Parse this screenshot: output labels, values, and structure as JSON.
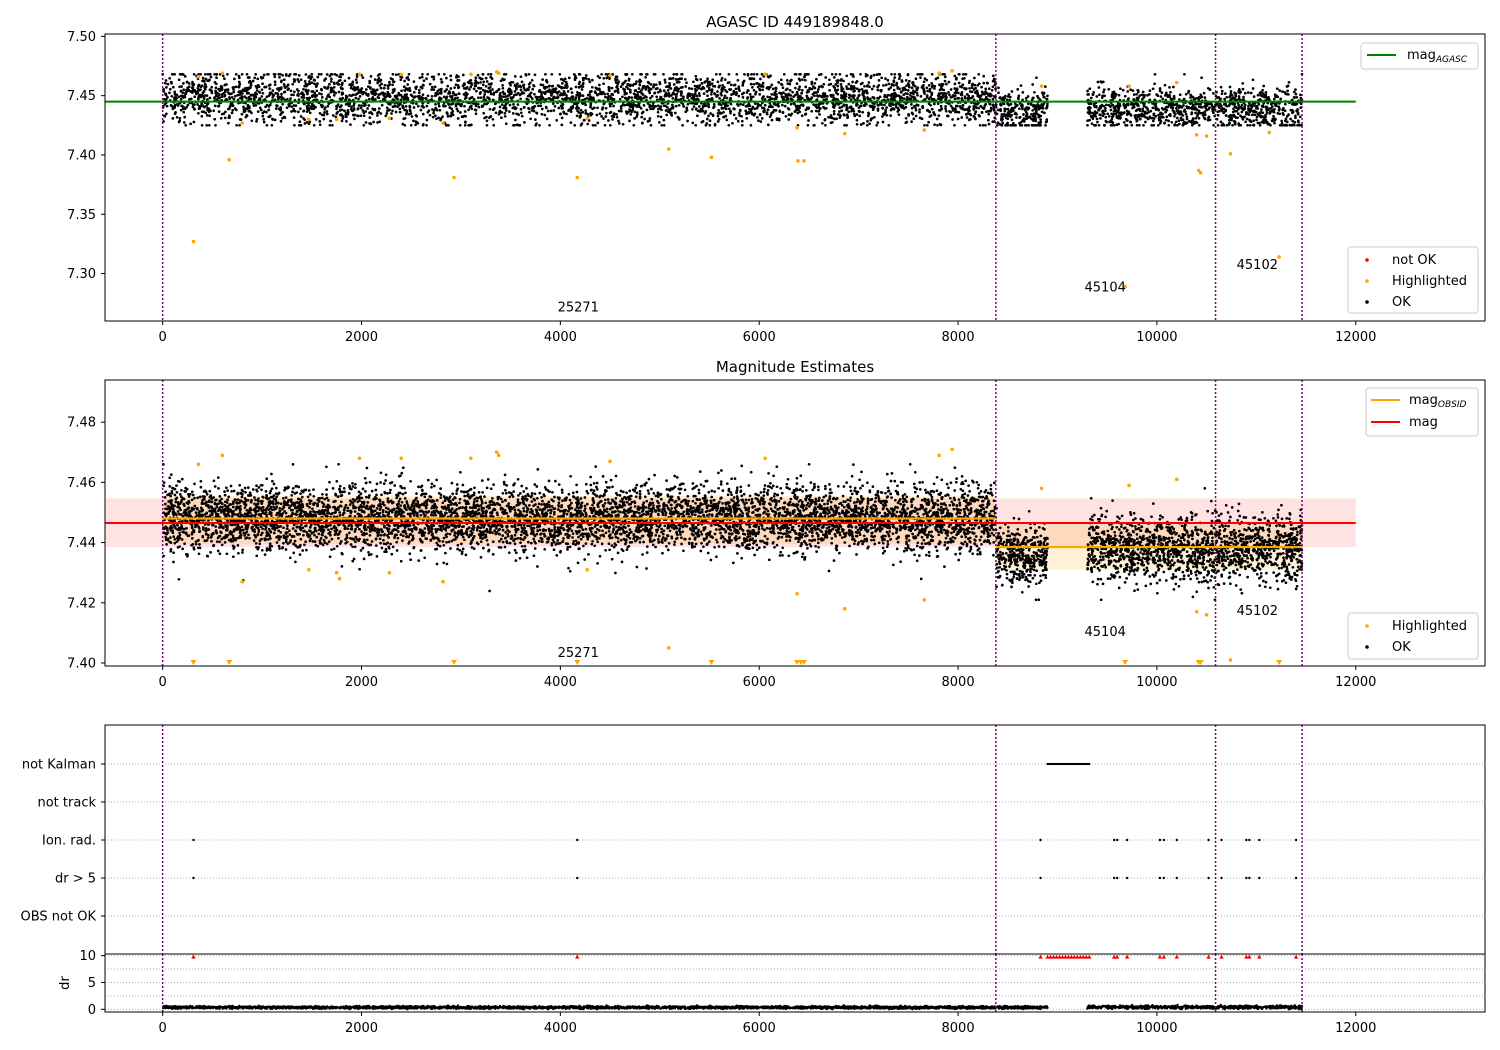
{
  "figure": {
    "background": "#ffffff"
  },
  "colors": {
    "ok": "#000000",
    "highlighted": "#ffa500",
    "not_ok": "#ff0000",
    "mag_agasc": "#008000",
    "mag_obsid": "#ffa500",
    "mag": "#ff0000",
    "obs_boundary": "#800080",
    "grid": "#b0b0b0"
  },
  "chart_data": [
    {
      "type": "scatter",
      "title": "AGASC ID 449189848.0",
      "xlim": [
        -580,
        13300
      ],
      "ylim": [
        7.26,
        7.502
      ],
      "xticks": [
        0,
        2000,
        4000,
        6000,
        8000,
        10000,
        12000
      ],
      "xtick_labels": [
        "0",
        "2000",
        "4000",
        "6000",
        "8000",
        "10000",
        "12000"
      ],
      "yticks": [
        7.3,
        7.35,
        7.4,
        7.45,
        7.5
      ],
      "ytick_labels": [
        "7.30",
        "7.35",
        "7.40",
        "7.45",
        "7.50"
      ],
      "obsid_boundaries": [
        0,
        8380,
        10590,
        11460
      ],
      "obsid_labels": [
        {
          "text": "25271",
          "x": 4180,
          "y": 7.268
        },
        {
          "text": "45104",
          "x": 9480,
          "y": 7.285
        },
        {
          "text": "45102",
          "x": 11010,
          "y": 7.304
        }
      ],
      "mag_agasc": {
        "name": "mag_{AGASC}",
        "label_main": "mag",
        "label_sub": "AGASC",
        "x": [
          -580,
          12000
        ],
        "y": 7.445
      },
      "ok_segments": [
        {
          "x_start": 0,
          "x_end": 8380,
          "mean": 7.448,
          "spread": 0.011
        },
        {
          "x_start": 8380,
          "x_end": 8900,
          "mean": 7.437,
          "spread": 0.009
        },
        {
          "x_start": 9300,
          "x_end": 11460,
          "mean": 7.439,
          "spread": 0.009
        }
      ],
      "highlighted": [
        {
          "x": 310,
          "y": 7.327
        },
        {
          "x": 670,
          "y": 7.396
        },
        {
          "x": 2930,
          "y": 7.381
        },
        {
          "x": 4170,
          "y": 7.381
        },
        {
          "x": 5090,
          "y": 7.405
        },
        {
          "x": 5520,
          "y": 7.398
        },
        {
          "x": 6380,
          "y": 7.423
        },
        {
          "x": 6390,
          "y": 7.395
        },
        {
          "x": 6450,
          "y": 7.395
        },
        {
          "x": 6860,
          "y": 7.418
        },
        {
          "x": 7660,
          "y": 7.421
        },
        {
          "x": 800,
          "y": 7.427
        },
        {
          "x": 1470,
          "y": 7.43
        },
        {
          "x": 1750,
          "y": 7.43
        },
        {
          "x": 2280,
          "y": 7.431
        },
        {
          "x": 2820,
          "y": 7.427
        },
        {
          "x": 4270,
          "y": 7.431
        },
        {
          "x": 360,
          "y": 7.466
        },
        {
          "x": 600,
          "y": 7.469
        },
        {
          "x": 1980,
          "y": 7.468
        },
        {
          "x": 2400,
          "y": 7.468
        },
        {
          "x": 3100,
          "y": 7.468
        },
        {
          "x": 3360,
          "y": 7.47
        },
        {
          "x": 3380,
          "y": 7.469
        },
        {
          "x": 4500,
          "y": 7.467
        },
        {
          "x": 6060,
          "y": 7.468
        },
        {
          "x": 7810,
          "y": 7.469
        },
        {
          "x": 7940,
          "y": 7.471
        },
        {
          "x": 8840,
          "y": 7.458
        },
        {
          "x": 9720,
          "y": 7.458
        },
        {
          "x": 9680,
          "y": 7.289
        },
        {
          "x": 10420,
          "y": 7.387
        },
        {
          "x": 10440,
          "y": 7.385
        },
        {
          "x": 10400,
          "y": 7.417
        },
        {
          "x": 10500,
          "y": 7.416
        },
        {
          "x": 10740,
          "y": 7.401
        },
        {
          "x": 11130,
          "y": 7.419
        },
        {
          "x": 11230,
          "y": 7.314
        },
        {
          "x": 10200,
          "y": 7.461
        }
      ],
      "legend_top": [
        "mag_AGASC"
      ],
      "legend_bottom": [
        "not OK",
        "Highlighted",
        "OK"
      ]
    },
    {
      "type": "scatter",
      "title": "Magnitude Estimates",
      "xlim": [
        -580,
        13300
      ],
      "ylim": [
        7.399,
        7.494
      ],
      "xticks": [
        0,
        2000,
        4000,
        6000,
        8000,
        10000,
        12000
      ],
      "xtick_labels": [
        "0",
        "2000",
        "4000",
        "6000",
        "8000",
        "10000",
        "12000"
      ],
      "yticks": [
        7.4,
        7.42,
        7.44,
        7.46,
        7.48
      ],
      "ytick_labels": [
        "7.40",
        "7.42",
        "7.44",
        "7.46",
        "7.48"
      ],
      "obsid_boundaries": [
        0,
        8380,
        10590,
        11460
      ],
      "obsid_labels": [
        {
          "text": "25271",
          "x": 4180,
          "y": 7.402
        },
        {
          "text": "45104",
          "x": 9480,
          "y": 7.409
        },
        {
          "text": "45102",
          "x": 11010,
          "y": 7.416
        }
      ],
      "mag": {
        "name": "mag",
        "y": 7.4465,
        "band": [
          7.4385,
          7.4547
        ],
        "x": [
          -580,
          12000
        ]
      },
      "mag_obsid": {
        "name": "mag_{OBSID}",
        "label_main": "mag",
        "label_sub": "OBSID",
        "segments": [
          {
            "x_start": 0,
            "x_end": 8380,
            "y": 7.448,
            "band": [
              7.4395,
              7.4555
            ]
          },
          {
            "x_start": 8380,
            "x_end": 11460,
            "y": 7.4385,
            "band": [
              7.431,
              7.446
            ]
          }
        ]
      },
      "ok_segments": [
        {
          "x_start": 0,
          "x_end": 8380,
          "mean": 7.448,
          "spread": 0.0055
        },
        {
          "x_start": 8380,
          "x_end": 8900,
          "mean": 7.436,
          "spread": 0.0055
        },
        {
          "x_start": 9300,
          "x_end": 11460,
          "mean": 7.438,
          "spread": 0.0055
        }
      ],
      "highlighted": [
        {
          "x": 800,
          "y": 7.427
        },
        {
          "x": 1470,
          "y": 7.431
        },
        {
          "x": 1750,
          "y": 7.43
        },
        {
          "x": 1780,
          "y": 7.428
        },
        {
          "x": 2280,
          "y": 7.43
        },
        {
          "x": 2820,
          "y": 7.427
        },
        {
          "x": 4270,
          "y": 7.431
        },
        {
          "x": 5090,
          "y": 7.405
        },
        {
          "x": 6380,
          "y": 7.423
        },
        {
          "x": 6860,
          "y": 7.418
        },
        {
          "x": 7660,
          "y": 7.421
        },
        {
          "x": 360,
          "y": 7.466
        },
        {
          "x": 600,
          "y": 7.469
        },
        {
          "x": 1980,
          "y": 7.468
        },
        {
          "x": 2400,
          "y": 7.468
        },
        {
          "x": 3100,
          "y": 7.468
        },
        {
          "x": 3360,
          "y": 7.47
        },
        {
          "x": 3380,
          "y": 7.469
        },
        {
          "x": 4500,
          "y": 7.467
        },
        {
          "x": 6060,
          "y": 7.468
        },
        {
          "x": 7810,
          "y": 7.469
        },
        {
          "x": 7940,
          "y": 7.471
        },
        {
          "x": 8840,
          "y": 7.458
        },
        {
          "x": 9720,
          "y": 7.459
        },
        {
          "x": 10200,
          "y": 7.461
        },
        {
          "x": 10400,
          "y": 7.417
        },
        {
          "x": 10500,
          "y": 7.416
        },
        {
          "x": 10740,
          "y": 7.401
        }
      ],
      "below_range_markers": [
        310,
        670,
        2930,
        4170,
        5520,
        6380,
        6420,
        6450,
        9680,
        10420,
        10440,
        11230
      ],
      "legend_top": [
        "mag_OBSID",
        "mag"
      ],
      "legend_bottom": [
        "Highlighted",
        "OK"
      ]
    },
    {
      "type": "scatter",
      "title": "",
      "xlim": [
        -580,
        13300
      ],
      "categories": [
        "not Kalman",
        "not track",
        "Ion. rad.",
        "dr > 5",
        "OBS not OK"
      ],
      "not_kalman": {
        "x_start": 8900,
        "x_end": 9330
      },
      "not_track": [],
      "ion_rad": [
        310,
        4170,
        8830,
        9570,
        9600,
        9700,
        10030,
        10070,
        10200,
        10520,
        10650,
        10900,
        10930,
        11030,
        11400
      ],
      "dr_gt_5": [
        310,
        4170,
        8830,
        9570,
        9600,
        9700,
        10030,
        10070,
        10200,
        10520,
        10650,
        10900,
        10930,
        11030,
        11400
      ],
      "obs_not_ok": [],
      "obsid_boundaries": [
        0,
        8380,
        10590,
        11460
      ]
    },
    {
      "type": "scatter",
      "title": "",
      "ylabel": "dr",
      "xlim": [
        -580,
        13300
      ],
      "ylim": [
        -0.5,
        10.3
      ],
      "yticks": [
        0,
        5,
        10
      ],
      "ytick_labels": [
        "0",
        "5",
        "10"
      ],
      "xticks": [
        0,
        2000,
        4000,
        6000,
        8000,
        10000,
        12000
      ],
      "xtick_labels": [
        "0",
        "2000",
        "4000",
        "6000",
        "8000",
        "10000",
        "12000"
      ],
      "dr_segments": [
        {
          "x_start": 0,
          "x_end": 8900,
          "mean": 0.35,
          "spread": 0.12
        },
        {
          "x_start": 9300,
          "x_end": 11460,
          "mean": 0.4,
          "spread": 0.15
        }
      ],
      "clipped_markers": [
        310,
        4170,
        8830,
        8900,
        8930,
        8960,
        8990,
        9020,
        9050,
        9080,
        9110,
        9140,
        9170,
        9200,
        9230,
        9260,
        9290,
        9320,
        9570,
        9600,
        9700,
        10030,
        10070,
        10200,
        10520,
        10650,
        10900,
        10930,
        11030,
        11400
      ],
      "obsid_boundaries": [
        0,
        8380,
        10590,
        11460
      ]
    }
  ]
}
